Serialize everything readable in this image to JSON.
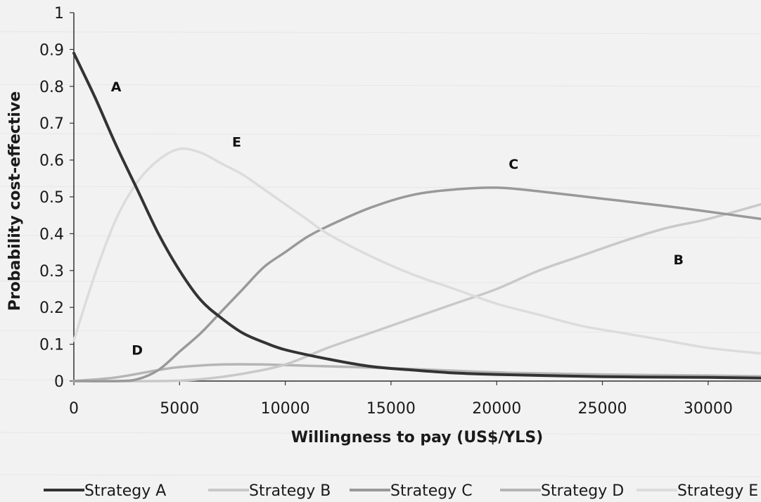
{
  "chart_data": {
    "type": "line",
    "xlabel": "Willingness to pay (US$/YLS)",
    "ylabel": "Probability cost-effective",
    "xlim": [
      0,
      32500
    ],
    "ylim": [
      0,
      1
    ],
    "x_ticks": [
      "0",
      "5000",
      "10000",
      "15000",
      "20000",
      "25000",
      "30000"
    ],
    "x_tick_values": [
      0,
      5000,
      10000,
      15000,
      20000,
      25000,
      30000
    ],
    "y_ticks": [
      "0",
      "0.1",
      "0.2",
      "0.3",
      "0.4",
      "0.5",
      "0.6",
      "0.7",
      "0.8",
      "0.9",
      "1"
    ],
    "y_tick_values": [
      0,
      0.1,
      0.2,
      0.3,
      0.4,
      0.5,
      0.6,
      0.7,
      0.8,
      0.9,
      1
    ],
    "grid": false,
    "legend_position": "bottom",
    "series": [
      {
        "name": "Strategy A",
        "label": "A",
        "color": "#333333",
        "points": [
          [
            0,
            0.89
          ],
          [
            1000,
            0.77
          ],
          [
            2000,
            0.64
          ],
          [
            3000,
            0.52
          ],
          [
            4000,
            0.4
          ],
          [
            5000,
            0.3
          ],
          [
            6000,
            0.22
          ],
          [
            7000,
            0.17
          ],
          [
            8000,
            0.13
          ],
          [
            9000,
            0.105
          ],
          [
            10000,
            0.085
          ],
          [
            12000,
            0.06
          ],
          [
            14000,
            0.04
          ],
          [
            16000,
            0.03
          ],
          [
            18000,
            0.022
          ],
          [
            20000,
            0.018
          ],
          [
            25000,
            0.012
          ],
          [
            30000,
            0.01
          ],
          [
            32500,
            0.008
          ]
        ]
      },
      {
        "name": "Strategy B",
        "label": "B",
        "color": "#c9c9c9",
        "points": [
          [
            0,
            0.0
          ],
          [
            4000,
            0.0
          ],
          [
            6000,
            0.005
          ],
          [
            8000,
            0.02
          ],
          [
            10000,
            0.045
          ],
          [
            12000,
            0.09
          ],
          [
            14000,
            0.13
          ],
          [
            16000,
            0.17
          ],
          [
            18000,
            0.21
          ],
          [
            20000,
            0.25
          ],
          [
            22000,
            0.3
          ],
          [
            24000,
            0.34
          ],
          [
            26000,
            0.38
          ],
          [
            28000,
            0.415
          ],
          [
            30000,
            0.44
          ],
          [
            32500,
            0.48
          ]
        ]
      },
      {
        "name": "Strategy C",
        "label": "C",
        "color": "#999999",
        "points": [
          [
            0,
            0.0
          ],
          [
            2000,
            0.0
          ],
          [
            3000,
            0.005
          ],
          [
            4000,
            0.03
          ],
          [
            5000,
            0.08
          ],
          [
            6000,
            0.13
          ],
          [
            7000,
            0.19
          ],
          [
            8000,
            0.25
          ],
          [
            9000,
            0.31
          ],
          [
            10000,
            0.35
          ],
          [
            11000,
            0.39
          ],
          [
            12000,
            0.42
          ],
          [
            14000,
            0.47
          ],
          [
            16000,
            0.505
          ],
          [
            18000,
            0.52
          ],
          [
            20000,
            0.525
          ],
          [
            22000,
            0.515
          ],
          [
            25000,
            0.495
          ],
          [
            28000,
            0.475
          ],
          [
            30000,
            0.46
          ],
          [
            32500,
            0.44
          ]
        ]
      },
      {
        "name": "Strategy D",
        "label": "D",
        "color": "#b5b5b5",
        "points": [
          [
            0,
            0.0
          ],
          [
            2000,
            0.01
          ],
          [
            4000,
            0.03
          ],
          [
            5000,
            0.038
          ],
          [
            7000,
            0.045
          ],
          [
            9000,
            0.045
          ],
          [
            12000,
            0.04
          ],
          [
            15000,
            0.035
          ],
          [
            18000,
            0.028
          ],
          [
            21000,
            0.022
          ],
          [
            25000,
            0.018
          ],
          [
            30000,
            0.015
          ],
          [
            32500,
            0.013
          ]
        ]
      },
      {
        "name": "Strategy E",
        "label": "E",
        "color": "#dcdcdc",
        "points": [
          [
            0,
            0.11
          ],
          [
            1000,
            0.29
          ],
          [
            2000,
            0.44
          ],
          [
            3000,
            0.54
          ],
          [
            4000,
            0.6
          ],
          [
            5000,
            0.63
          ],
          [
            6000,
            0.62
          ],
          [
            7000,
            0.59
          ],
          [
            8000,
            0.56
          ],
          [
            9000,
            0.52
          ],
          [
            10000,
            0.48
          ],
          [
            11000,
            0.44
          ],
          [
            12000,
            0.4
          ],
          [
            14000,
            0.34
          ],
          [
            16000,
            0.29
          ],
          [
            18000,
            0.25
          ],
          [
            20000,
            0.21
          ],
          [
            22000,
            0.18
          ],
          [
            24000,
            0.15
          ],
          [
            26000,
            0.13
          ],
          [
            28000,
            0.11
          ],
          [
            30000,
            0.09
          ],
          [
            32500,
            0.075
          ]
        ]
      }
    ],
    "annotations": [
      {
        "text": "A",
        "x": 2000,
        "y": 0.8
      },
      {
        "text": "E",
        "x": 7700,
        "y": 0.65
      },
      {
        "text": "C",
        "x": 20800,
        "y": 0.59
      },
      {
        "text": "B",
        "x": 28600,
        "y": 0.33
      },
      {
        "text": "D",
        "x": 3000,
        "y": 0.085
      }
    ]
  }
}
